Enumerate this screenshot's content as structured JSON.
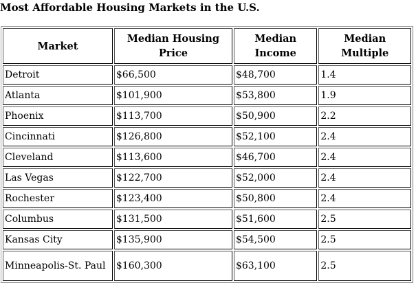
{
  "title": "Most Affordable Housing Markets in the U.S.",
  "table": {
    "headers": [
      "Market",
      "Median Housing Price",
      "Median Income",
      "Median Multiple"
    ],
    "header_lines": [
      [
        "Market"
      ],
      [
        "Median Housing",
        "Price"
      ],
      [
        "Median",
        "Income"
      ],
      [
        "Median",
        "Multiple"
      ]
    ],
    "rows": [
      [
        "Detroit",
        "$66,500",
        "$48,700",
        "1.4"
      ],
      [
        "Atlanta",
        "$101,900",
        "$53,800",
        "1.9"
      ],
      [
        "Phoenix",
        "$113,700",
        "$50,900",
        "2.2"
      ],
      [
        "Cincinnati",
        "$126,800",
        "$52,100",
        "2.4"
      ],
      [
        "Cleveland",
        "$113,600",
        "$46,700",
        "2.4"
      ],
      [
        "Las Vegas",
        "$122,700",
        "$52,000",
        "2.4"
      ],
      [
        "Rochester",
        "$123,400",
        "$50,800",
        "2.4"
      ],
      [
        "Columbus",
        "$131,500",
        "$51,600",
        "2.5"
      ],
      [
        "Kansas City",
        "$135,900",
        "$54,500",
        "2.5"
      ],
      [
        "Minneapolis-St. Paul",
        "$160,300",
        "$63,100",
        "2.5"
      ]
    ]
  }
}
